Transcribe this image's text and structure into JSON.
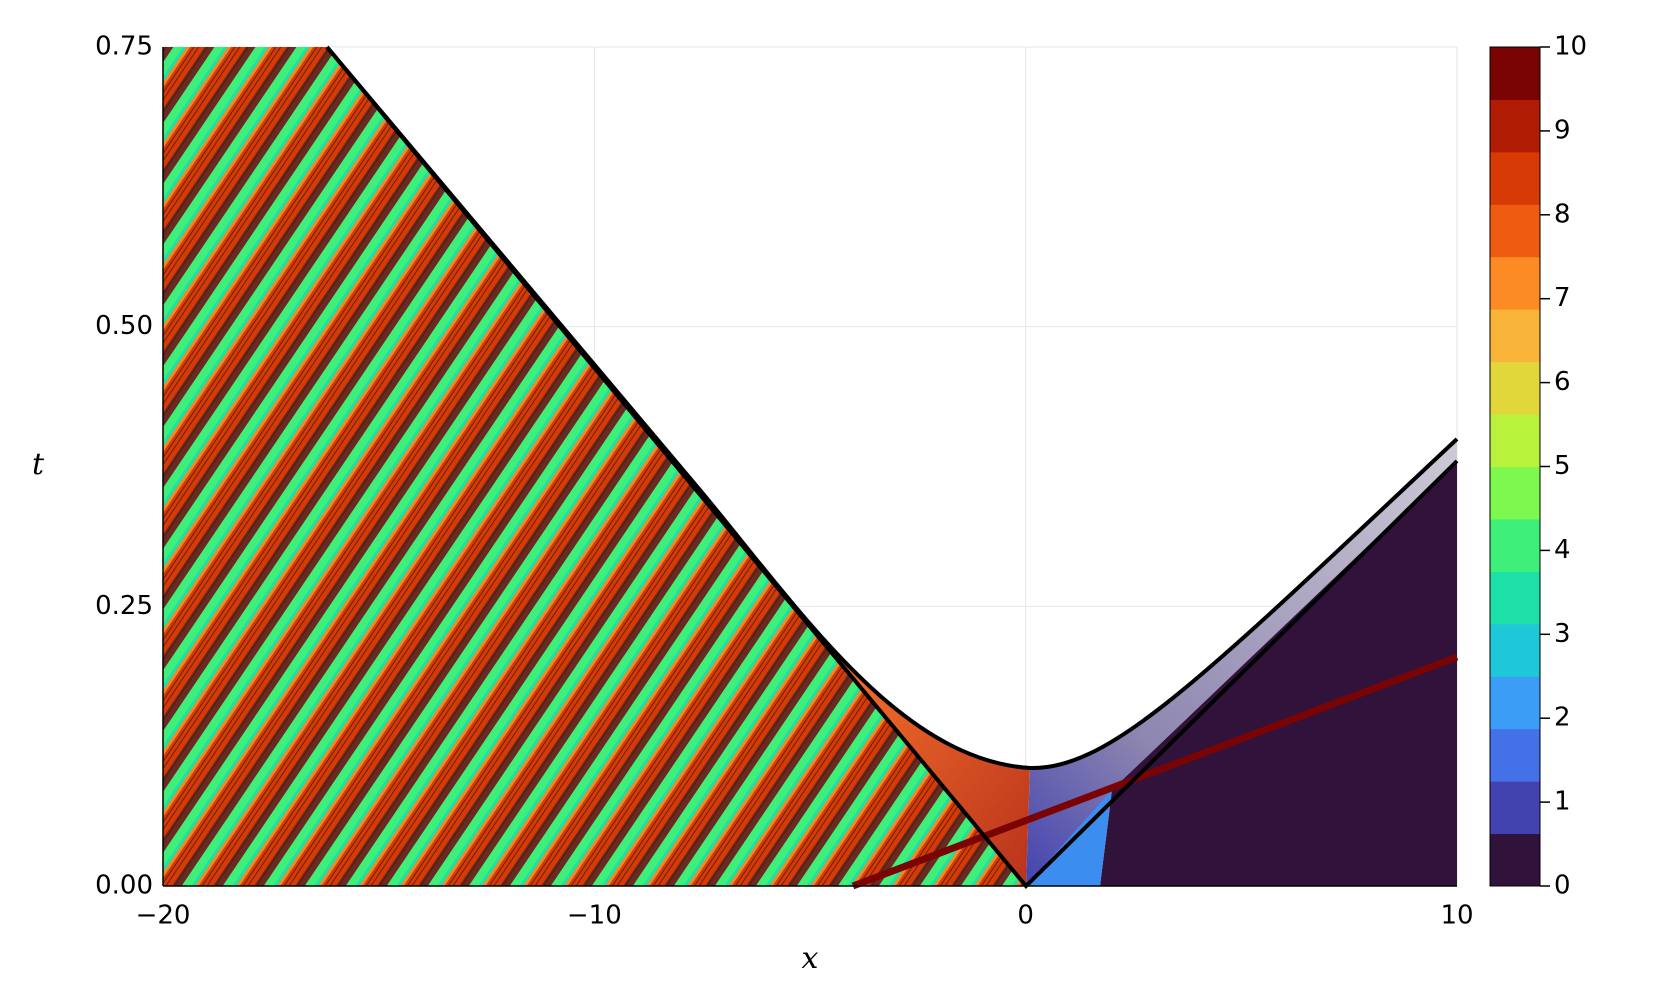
{
  "chart_data": {
    "type": "contour",
    "x_label": "x",
    "y_label": "t",
    "xlim": [
      -20,
      10
    ],
    "xticks": [
      {
        "value": -20,
        "label": "−20"
      },
      {
        "value": -10,
        "label": "−10"
      },
      0,
      10
    ],
    "ylim": [
      0,
      0.75
    ],
    "yticks": [
      {
        "value": 0,
        "label": "0.00"
      },
      {
        "value": 0.25,
        "label": "0.25"
      },
      {
        "value": 0.5,
        "label": "0.50"
      },
      {
        "value": 0.75,
        "label": "0.75"
      }
    ],
    "grid": true,
    "colorbar": {
      "lim": [
        0,
        10
      ],
      "ticks": [
        0,
        1,
        2,
        3,
        4,
        5,
        6,
        7,
        8,
        9,
        10
      ],
      "levels": [
        0,
        0.625,
        1.25,
        1.875,
        2.5,
        3.125,
        3.75,
        4.375,
        5,
        5.625,
        6.25,
        6.875,
        7.5,
        8.125,
        8.75,
        9.375,
        10
      ],
      "colors": [
        "#30123b",
        "#4343b0",
        "#4470e8",
        "#3b9df5",
        "#1ec8d8",
        "#1de0a8",
        "#3ef07a",
        "#7cf84f",
        "#b8f23a",
        "#e1d63a",
        "#f8b438",
        "#fc8a25",
        "#f05b12",
        "#d83a05",
        "#b01c03",
        "#7a0403"
      ]
    }
  }
}
